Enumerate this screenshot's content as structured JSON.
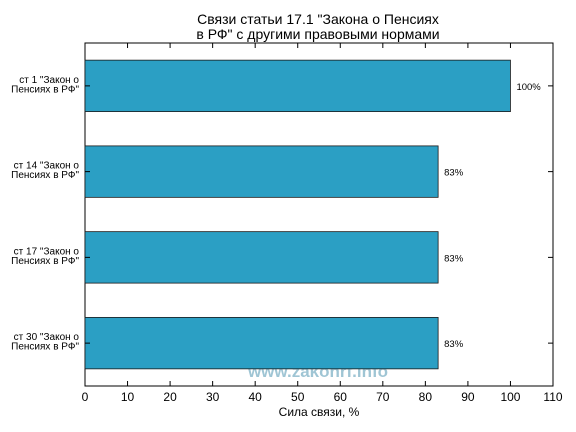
{
  "chart_data": {
    "type": "bar",
    "orientation": "horizontal",
    "title": [
      "Связи статьи 17.1 \"Закона о Пенсиях",
      "в РФ\" с другими правовыми нормами"
    ],
    "categories": [
      [
        "ст 1 \"Закон о",
        "Пенсиях в РФ\""
      ],
      [
        "ст 14 \"Закон о",
        "Пенсиях в РФ\""
      ],
      [
        "ст 17 \"Закон о",
        "Пенсиях в РФ\""
      ],
      [
        "ст 30 \"Закон о",
        "Пенсиях в РФ\""
      ]
    ],
    "values": [
      100,
      83,
      83,
      83
    ],
    "value_labels": [
      "100%",
      "83%",
      "83%",
      "83%"
    ],
    "xlabel": "Сила связи, %",
    "ylabel": "",
    "xlim": [
      0,
      110
    ],
    "xticks": [
      0,
      10,
      20,
      30,
      40,
      50,
      60,
      70,
      80,
      90,
      100,
      110
    ],
    "grid": false,
    "bar_color": "#2b9fc4"
  },
  "watermark": "www.zakonrf.info"
}
